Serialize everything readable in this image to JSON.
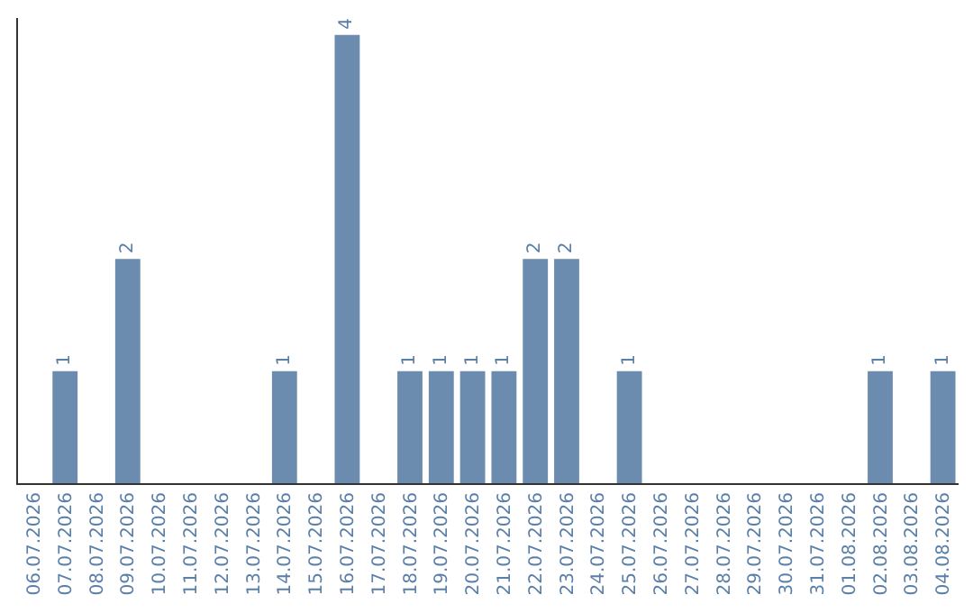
{
  "chart_data": {
    "type": "bar",
    "categories": [
      "06.07.2026",
      "07.07.2026",
      "08.07.2026",
      "09.07.2026",
      "10.07.2026",
      "11.07.2026",
      "12.07.2026",
      "13.07.2026",
      "14.07.2026",
      "15.07.2026",
      "16.07.2026",
      "17.07.2026",
      "18.07.2026",
      "19.07.2026",
      "20.07.2026",
      "21.07.2026",
      "22.07.2026",
      "23.07.2026",
      "24.07.2026",
      "25.07.2026",
      "26.07.2026",
      "27.07.2026",
      "28.07.2026",
      "29.07.2026",
      "30.07.2026",
      "31.07.2026",
      "01.08.2026",
      "02.08.2026",
      "03.08.2026",
      "04.08.2026"
    ],
    "values": [
      0,
      1,
      0,
      2,
      0,
      0,
      0,
      0,
      1,
      0,
      4,
      0,
      1,
      1,
      1,
      1,
      2,
      2,
      0,
      1,
      0,
      0,
      0,
      0,
      0,
      0,
      0,
      1,
      0,
      1
    ],
    "value_labels": [
      null,
      "1",
      null,
      "2",
      null,
      null,
      null,
      null,
      "1",
      null,
      "4",
      null,
      "1",
      "1",
      "1",
      "1",
      "2",
      "2",
      null,
      "1",
      null,
      null,
      null,
      null,
      null,
      null,
      null,
      "1",
      null,
      "1"
    ],
    "color": "#6b8cae",
    "ylim": [
      0,
      4.15
    ],
    "tick_labels": "x"
  }
}
